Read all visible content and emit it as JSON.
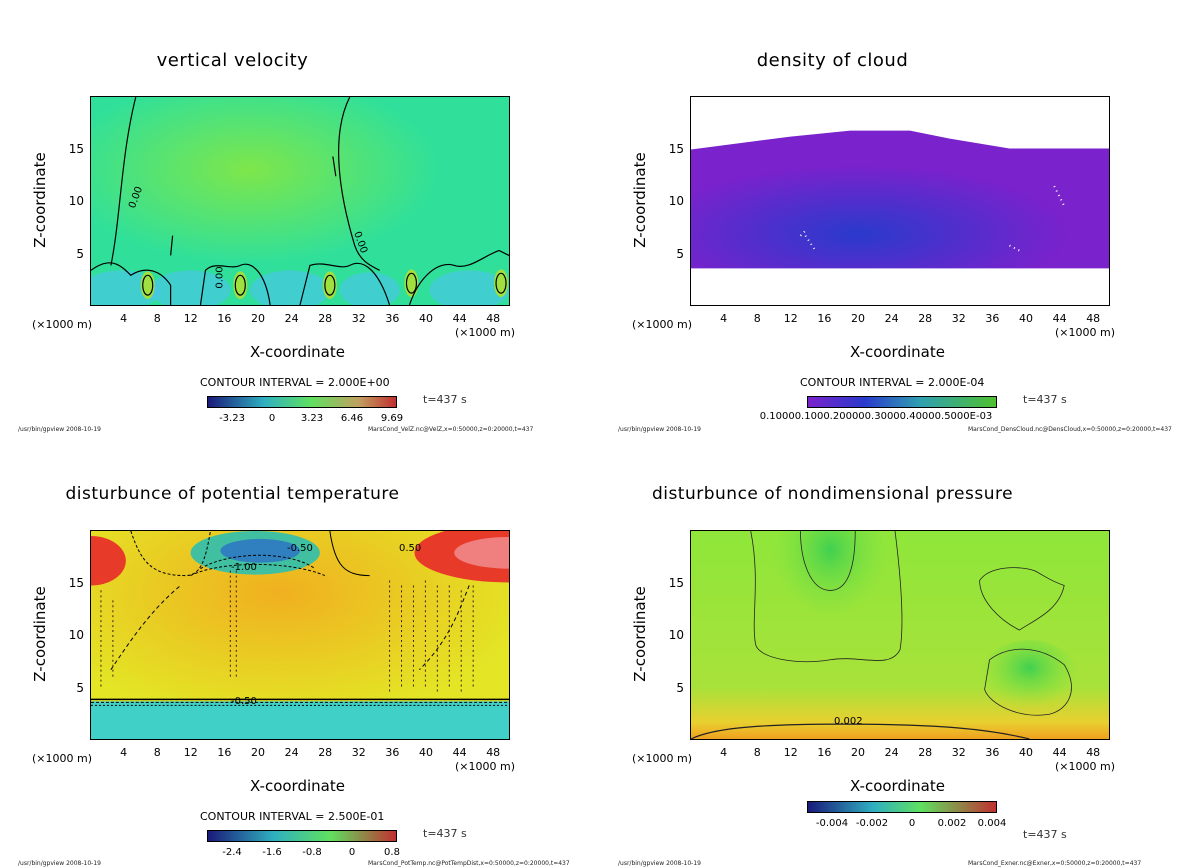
{
  "chart_data": [
    {
      "type": "heatmap",
      "title": "vertical velocity",
      "xlabel": "X-coordinate",
      "ylabel": "Z-coordinate",
      "x_unit_left": "(×1000 m)",
      "x_unit_right": "(×1000 m)",
      "xticks": [
        4,
        8,
        12,
        16,
        20,
        24,
        28,
        32,
        36,
        40,
        44,
        48
      ],
      "yticks": [
        5,
        10,
        15
      ],
      "xlim": [
        0,
        50
      ],
      "ylim": [
        0,
        20
      ],
      "contour_interval": "CONTOUR INTERVAL = 2.000E+00",
      "colorbar_labels": [
        "-3.23",
        "0",
        "3.23",
        "6.46",
        "9.69"
      ],
      "contour_labels": [
        "0.00",
        "0.00",
        "0.00"
      ],
      "time": "t=437 s",
      "path": "/usr/bin/gpview  2008-10-19",
      "file": "MarsCond_VelZ.nc@VelZ,x=0:50000,z=0:20000,t=437"
    },
    {
      "type": "heatmap",
      "title": "density of cloud",
      "xlabel": "X-coordinate",
      "ylabel": "Z-coordinate",
      "x_unit_left": "(×1000 m)",
      "x_unit_right": "(×1000 m)",
      "xticks": [
        4,
        8,
        12,
        16,
        20,
        24,
        28,
        32,
        36,
        40,
        44,
        48
      ],
      "yticks": [
        5,
        10,
        15
      ],
      "xlim": [
        0,
        50
      ],
      "ylim": [
        0,
        20
      ],
      "contour_interval": "CONTOUR INTERVAL = 2.000E-04",
      "colorbar_labels": [
        "0.1000E-03",
        "0.2000E-03",
        "0.3000E-03",
        "0.4000E-03",
        "0.5000E-03"
      ],
      "colorbar_text": "0.10000.1000.200000.30000.40000.5000E-03",
      "time": "t=437 s",
      "path": "/usr/bin/gpview  2008-10-19",
      "file": "MarsCond_DensCloud.nc@DensCloud,x=0:50000,z=0:20000,t=437"
    },
    {
      "type": "heatmap",
      "title": "disturbunce of potential temperature",
      "xlabel": "X-coordinate",
      "ylabel": "Z-coordinate",
      "x_unit_left": "(×1000 m)",
      "x_unit_right": "(×1000 m)",
      "xticks": [
        4,
        8,
        12,
        16,
        20,
        24,
        28,
        32,
        36,
        40,
        44,
        48
      ],
      "yticks": [
        5,
        10,
        15
      ],
      "xlim": [
        0,
        50
      ],
      "ylim": [
        0,
        20
      ],
      "contour_interval": "CONTOUR INTERVAL = 2.500E-01",
      "colorbar_labels": [
        "-2.4",
        "-1.6",
        "-0.8",
        "0",
        "0.8"
      ],
      "contour_labels": [
        "-0.50",
        "0.50",
        "-1.00",
        "-0.50"
      ],
      "time": "t=437 s",
      "path": "/usr/bin/gpview  2008-10-19",
      "file": "MarsCond_PotTemp.nc@PotTempDist,x=0:50000,z=0:20000,t=437"
    },
    {
      "type": "heatmap",
      "title": "disturbunce of nondimensional pressure",
      "xlabel": "X-coordinate",
      "ylabel": "Z-coordinate",
      "x_unit_left": "(×1000 m)",
      "x_unit_right": "(×1000 m)",
      "xticks": [
        4,
        8,
        12,
        16,
        20,
        24,
        28,
        32,
        36,
        40,
        44,
        48
      ],
      "yticks": [
        5,
        10,
        15
      ],
      "xlim": [
        0,
        50
      ],
      "ylim": [
        0,
        20
      ],
      "contour_interval": "",
      "colorbar_labels": [
        "-0.004",
        "-0.002",
        "0",
        "0.002",
        "0.004"
      ],
      "contour_labels": [
        "0.002"
      ],
      "time": "t=437 s",
      "path": "/usr/bin/gpview  2008-10-19",
      "file": "MarsCond_Exner.nc@Exner,x=0:50000,z=0:20000,t=437"
    }
  ],
  "colors": {
    "velocity_bg": "#2fe39a",
    "cloud": "#7a22cc",
    "temp_bg": "#dfe52a",
    "pressure_bg": "#8fe63a",
    "hot": "#e63a2a",
    "cold": "#30c8d8"
  }
}
